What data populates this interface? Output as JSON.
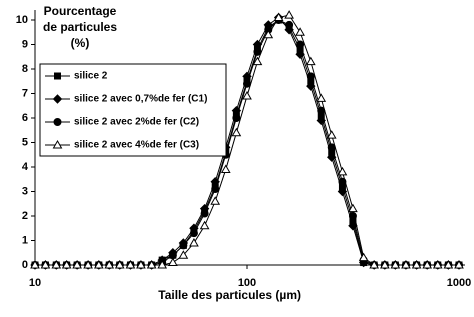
{
  "chart_data": {
    "type": "line",
    "x_scale": "log",
    "y_label": [
      "Pourcentage",
      "de particules",
      "(%)"
    ],
    "x_label": "Taille des particules (µm)",
    "xlim": [
      10,
      1000
    ],
    "xticks": [
      10,
      100,
      1000
    ],
    "ylim": [
      0,
      10
    ],
    "yticks": [
      0,
      1,
      2,
      3,
      4,
      5,
      6,
      7,
      8,
      9,
      10
    ],
    "grid": false,
    "legend": "left",
    "x": [
      10,
      11.2,
      12.6,
      14.1,
      15.8,
      17.8,
      20.0,
      22.4,
      25.1,
      28.2,
      31.6,
      35.5,
      39.8,
      44.7,
      50.1,
      56.2,
      63.1,
      70.8,
      79.4,
      89.1,
      100,
      112,
      126,
      141,
      158,
      178,
      200,
      224,
      251,
      282,
      316,
      355,
      398,
      447,
      501,
      562,
      631,
      708,
      794,
      891,
      1000
    ],
    "series": [
      {
        "name": "silice 2",
        "color": "#000000",
        "marker": "square",
        "values": [
          0,
          0,
          0,
          0,
          0,
          0,
          0,
          0,
          0,
          0,
          0,
          0,
          0.2,
          0.4,
          0.8,
          1.4,
          2.2,
          3.2,
          4.6,
          6.1,
          7.5,
          8.8,
          9.7,
          10,
          9.7,
          8.8,
          7.5,
          6.1,
          4.6,
          3.2,
          1.8,
          0.1,
          0,
          0,
          0,
          0,
          0,
          0,
          0,
          0,
          0
        ]
      },
      {
        "name": "silice 2 avec 0,7%de fer (C1)",
        "color": "#000000",
        "marker": "diamond",
        "values": [
          0,
          0,
          0,
          0,
          0,
          0,
          0,
          0,
          0,
          0,
          0,
          0,
          0.2,
          0.5,
          0.9,
          1.5,
          2.3,
          3.4,
          4.8,
          6.3,
          7.7,
          9.0,
          9.8,
          10.1,
          9.6,
          8.6,
          7.3,
          5.9,
          4.4,
          3.0,
          1.6,
          0.1,
          0,
          0,
          0,
          0,
          0,
          0,
          0,
          0,
          0
        ]
      },
      {
        "name": "silice 2 avec 2%de fer (C2)",
        "color": "#000000",
        "marker": "circle",
        "values": [
          0,
          0,
          0,
          0,
          0,
          0,
          0,
          0,
          0,
          0,
          0,
          0,
          0.1,
          0.4,
          0.8,
          1.3,
          2.1,
          3.1,
          4.5,
          6.0,
          7.4,
          8.7,
          9.6,
          10.0,
          9.8,
          9.0,
          7.7,
          6.3,
          4.8,
          3.4,
          2.0,
          0.2,
          0,
          0,
          0,
          0,
          0,
          0,
          0,
          0,
          0
        ]
      },
      {
        "name": "silice 2 avec 4%de fer (C3)",
        "color": "#000000",
        "marker": "triangle",
        "values": [
          0,
          0,
          0,
          0,
          0,
          0,
          0,
          0,
          0,
          0,
          0,
          0,
          0,
          0.1,
          0.4,
          0.9,
          1.6,
          2.6,
          3.9,
          5.4,
          6.9,
          8.3,
          9.4,
          10.1,
          10.2,
          9.5,
          8.3,
          6.8,
          5.3,
          3.8,
          2.3,
          0.3,
          0,
          0,
          0,
          0,
          0,
          0,
          0,
          0,
          0
        ]
      }
    ]
  }
}
